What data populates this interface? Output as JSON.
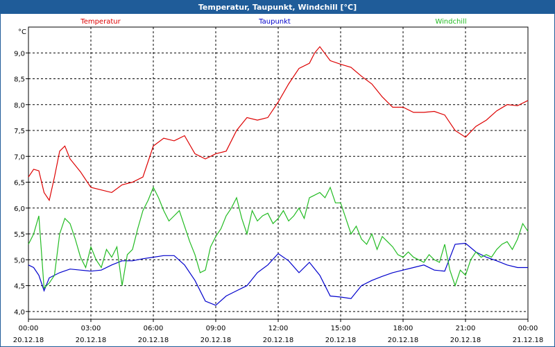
{
  "window": {
    "title": "Temperatur, Taupunkt, Windchill [°C]"
  },
  "chart_data": {
    "type": "line",
    "title": "Temperatur, Taupunkt, Windchill [°C]",
    "ylabel": "°C",
    "ylim": [
      3.85,
      9.5
    ],
    "xlim": [
      0,
      24
    ],
    "y_ticks": [
      {
        "value": 4.0,
        "label": "4,0"
      },
      {
        "value": 4.5,
        "label": "4,5"
      },
      {
        "value": 5.0,
        "label": "5,0"
      },
      {
        "value": 5.5,
        "label": "5,5"
      },
      {
        "value": 6.0,
        "label": "6,0"
      },
      {
        "value": 6.5,
        "label": "6,5"
      },
      {
        "value": 7.0,
        "label": "7,0"
      },
      {
        "value": 7.5,
        "label": "7,5"
      },
      {
        "value": 8.0,
        "label": "8,0"
      },
      {
        "value": 8.5,
        "label": "8,5"
      },
      {
        "value": 9.0,
        "label": "9,0"
      }
    ],
    "x_ticks": [
      {
        "value": 0,
        "time": "00:00",
        "date": "20.12.18"
      },
      {
        "value": 3,
        "time": "03:00",
        "date": "20.12.18"
      },
      {
        "value": 6,
        "time": "06:00",
        "date": "20.12.18"
      },
      {
        "value": 9,
        "time": "09:00",
        "date": "20.12.18"
      },
      {
        "value": 12,
        "time": "12:00",
        "date": "20.12.18"
      },
      {
        "value": 15,
        "time": "15:00",
        "date": "20.12.18"
      },
      {
        "value": 18,
        "time": "18:00",
        "date": "20.12.18"
      },
      {
        "value": 21,
        "time": "21:00",
        "date": "20.12.18"
      },
      {
        "value": 24,
        "time": "00:00",
        "date": "21.12.18"
      }
    ],
    "grid": true,
    "legend_position": "top",
    "series": [
      {
        "name": "Temperatur",
        "color": "#dd0000",
        "x": [
          0,
          0.25,
          0.5,
          0.75,
          1,
          1.25,
          1.5,
          1.75,
          2,
          2.5,
          3,
          3.5,
          4,
          4.5,
          5,
          5.5,
          6,
          6.5,
          7,
          7.5,
          8,
          8.5,
          9,
          9.5,
          10,
          10.5,
          11,
          11.5,
          12,
          12.5,
          13,
          13.5,
          13.75,
          14,
          14.5,
          15,
          15.5,
          16,
          16.5,
          17,
          17.5,
          18,
          18.5,
          19,
          19.5,
          20,
          20.5,
          21,
          21.5,
          22,
          22.5,
          23,
          23.5,
          24
        ],
        "values": [
          6.6,
          6.75,
          6.72,
          6.3,
          6.15,
          6.6,
          7.1,
          7.2,
          6.95,
          6.7,
          6.4,
          6.35,
          6.3,
          6.45,
          6.5,
          6.6,
          7.2,
          7.35,
          7.3,
          7.4,
          7.05,
          6.95,
          7.05,
          7.1,
          7.5,
          7.75,
          7.7,
          7.75,
          8.05,
          8.4,
          8.7,
          8.8,
          9.0,
          9.12,
          8.85,
          8.78,
          8.72,
          8.55,
          8.4,
          8.15,
          7.95,
          7.95,
          7.85,
          7.85,
          7.87,
          7.8,
          7.5,
          7.37,
          7.58,
          7.7,
          7.88,
          8.0,
          7.98,
          8.08
        ]
      },
      {
        "name": "Taupunkt",
        "color": "#0000cc",
        "x": [
          0,
          0.25,
          0.5,
          0.75,
          1,
          1.5,
          2,
          2.5,
          3,
          3.5,
          4,
          4.5,
          5,
          5.5,
          6,
          6.5,
          7,
          7.5,
          8,
          8.5,
          9,
          9.5,
          10,
          10.5,
          11,
          11.5,
          12,
          12.5,
          13,
          13.5,
          14,
          14.5,
          15,
          15.5,
          16,
          16.5,
          17,
          17.5,
          18,
          18.5,
          19,
          19.5,
          20,
          20.5,
          21,
          21.5,
          22,
          22.5,
          23,
          23.5,
          24
        ],
        "values": [
          4.9,
          4.85,
          4.7,
          4.4,
          4.65,
          4.75,
          4.82,
          4.8,
          4.78,
          4.8,
          4.9,
          4.98,
          4.98,
          5.02,
          5.05,
          5.08,
          5.08,
          4.9,
          4.6,
          4.2,
          4.12,
          4.3,
          4.4,
          4.5,
          4.75,
          4.9,
          5.12,
          4.98,
          4.75,
          4.95,
          4.7,
          4.3,
          4.28,
          4.25,
          4.5,
          4.6,
          4.68,
          4.75,
          4.8,
          4.85,
          4.9,
          4.8,
          4.78,
          5.3,
          5.32,
          5.15,
          5.05,
          4.98,
          4.9,
          4.85,
          4.85
        ]
      },
      {
        "name": "Windchill",
        "color": "#22bb22",
        "x": [
          0,
          0.25,
          0.5,
          0.75,
          1,
          1.25,
          1.5,
          1.75,
          2,
          2.25,
          2.5,
          2.75,
          3,
          3.25,
          3.5,
          3.75,
          4,
          4.25,
          4.5,
          4.75,
          5,
          5.25,
          5.5,
          5.75,
          6,
          6.25,
          6.5,
          6.75,
          7,
          7.25,
          7.5,
          7.75,
          8,
          8.25,
          8.5,
          8.75,
          9,
          9.25,
          9.5,
          9.75,
          10,
          10.25,
          10.5,
          10.75,
          11,
          11.25,
          11.5,
          11.75,
          12,
          12.25,
          12.5,
          12.75,
          13,
          13.25,
          13.5,
          13.75,
          14,
          14.25,
          14.5,
          14.75,
          15,
          15.25,
          15.5,
          15.75,
          16,
          16.25,
          16.5,
          16.75,
          17,
          17.25,
          17.5,
          17.75,
          18,
          18.25,
          18.5,
          18.75,
          19,
          19.25,
          19.5,
          19.75,
          20,
          20.25,
          20.5,
          20.75,
          21,
          21.25,
          21.5,
          21.75,
          22,
          22.25,
          22.5,
          22.75,
          23,
          23.25,
          23.5,
          23.75,
          24
        ],
        "values": [
          5.3,
          5.5,
          5.85,
          4.45,
          4.55,
          4.7,
          5.5,
          5.8,
          5.7,
          5.4,
          5.05,
          4.85,
          5.25,
          5.0,
          4.85,
          5.2,
          5.05,
          5.25,
          4.5,
          5.1,
          5.2,
          5.6,
          5.95,
          6.15,
          6.4,
          6.2,
          5.95,
          5.75,
          5.85,
          5.95,
          5.65,
          5.35,
          5.1,
          4.75,
          4.8,
          5.25,
          5.45,
          5.6,
          5.85,
          6.0,
          6.2,
          5.8,
          5.5,
          5.95,
          5.75,
          5.85,
          5.9,
          5.7,
          5.8,
          5.95,
          5.75,
          5.85,
          6.0,
          5.8,
          6.2,
          6.25,
          6.3,
          6.2,
          6.4,
          6.1,
          6.1,
          5.8,
          5.5,
          5.65,
          5.4,
          5.3,
          5.5,
          5.2,
          5.45,
          5.35,
          5.25,
          5.1,
          5.05,
          5.15,
          5.05,
          5.0,
          4.95,
          5.1,
          5.0,
          4.95,
          5.3,
          4.8,
          4.5,
          4.8,
          4.7,
          5.0,
          5.15,
          5.05,
          5.1,
          5.05,
          5.2,
          5.3,
          5.35,
          5.2,
          5.4,
          5.7,
          5.55
        ]
      }
    ]
  }
}
